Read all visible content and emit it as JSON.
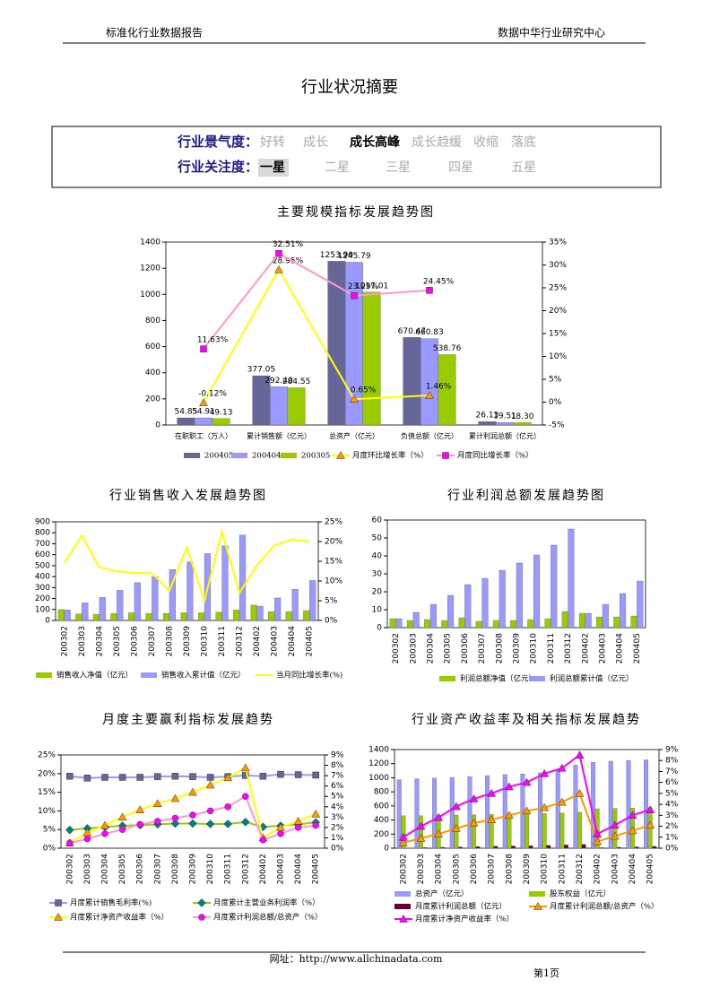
{
  "header": {
    "left": "标准化行业数据报告",
    "right": "数据中华行业研究中心"
  },
  "title": "行业状况摘要",
  "summary": {
    "rows": [
      {
        "label": "行业景气度：",
        "options": [
          "好转",
          "成长",
          "成长高峰",
          "成长趋缓",
          "收缩",
          "落底"
        ],
        "selected": 2
      },
      {
        "label": "行业关注度：",
        "options": [
          "一星",
          "二星",
          "三星",
          "四星",
          "五星"
        ],
        "selected": 0
      }
    ]
  },
  "charts": [
    {
      "type": "combo",
      "title": "主要规模指标发展趋势图",
      "categories": [
        "在职职工（万人）",
        "累计销售额（亿元）",
        "总资产（亿元）",
        "负债总额（亿元）",
        "累计利润总额（亿元）"
      ],
      "ylim": [
        0,
        1400
      ],
      "yticks": [
        0,
        200,
        400,
        600,
        800,
        1000,
        1200,
        1400
      ],
      "y2lim": [
        -5,
        35
      ],
      "y2ticks": [
        {
          "value": -5,
          "label": "-5%"
        },
        {
          "value": 0,
          "label": "0%"
        },
        {
          "value": 5,
          "label": "5%"
        },
        {
          "value": 10,
          "label": "10%"
        },
        {
          "value": 15,
          "label": "15%"
        },
        {
          "value": 20,
          "label": "20%"
        },
        {
          "value": 25,
          "label": "25%"
        },
        {
          "value": 30,
          "label": "30%"
        },
        {
          "value": 35,
          "label": "35%"
        }
      ],
      "series": [
        {
          "name": "200405",
          "kind": "bar",
          "color": "#666699",
          "values": [
            54.85,
            377.05,
            1253.9,
            670.47,
            26.13
          ],
          "value_labels": [
            "54.85",
            "377.05",
            "1253.90",
            "670.47",
            "26.13"
          ]
        },
        {
          "name": "200404",
          "kind": "bar",
          "color": "#9999ff",
          "values": [
            54.91,
            292.4,
            1245.79,
            660.83,
            19.51
          ],
          "value_labels": [
            "54.91",
            "292.40",
            "1245.79",
            "660.83",
            "19.51"
          ]
        },
        {
          "name": "200305",
          "kind": "bar",
          "color": "#99cc00",
          "values": [
            49.13,
            284.55,
            1017.01,
            538.76,
            18.3
          ],
          "value_labels": [
            "49.13",
            "284.55",
            "1017.01",
            "538.76",
            "18.30"
          ]
        },
        {
          "name": "月度环比增长率（%）",
          "kind": "line",
          "axis": "y2",
          "marker": "triangle",
          "color": "#ffff00",
          "marker_color": "#ff9900",
          "values": [
            -0.12,
            28.95,
            0.65,
            1.46,
            null
          ],
          "value_labels": [
            "-0.12%",
            "28.95%",
            "0.65%",
            "1.46%",
            null
          ]
        },
        {
          "name": "月度同比增长率（%）",
          "kind": "line",
          "axis": "y2",
          "marker": "square",
          "color": "#ff99cc",
          "marker_color": "#ff00ff",
          "values": [
            11.63,
            32.51,
            23.29,
            24.45,
            null
          ],
          "value_labels": [
            "11.63%",
            "32.51%",
            "23.29%",
            "24.45%",
            null
          ]
        }
      ]
    },
    {
      "type": "combo",
      "title": "行业销售收入发展趋势图",
      "categories": [
        "200302",
        "200303",
        "200304",
        "200305",
        "200306",
        "200307",
        "200308",
        "200309",
        "200310",
        "200311",
        "200312",
        "200402",
        "200403",
        "200404",
        "200405"
      ],
      "ylim": [
        0,
        900
      ],
      "yticks": [
        0,
        100,
        200,
        300,
        400,
        500,
        600,
        700,
        800,
        900
      ],
      "y2lim": [
        0,
        25
      ],
      "y2ticks": [
        {
          "value": 0,
          "label": "0%"
        },
        {
          "value": 5,
          "label": "5%"
        },
        {
          "value": 10,
          "label": "10%"
        },
        {
          "value": 15,
          "label": "15%"
        },
        {
          "value": 20,
          "label": "20%"
        },
        {
          "value": 25,
          "label": "25%"
        }
      ],
      "series": [
        {
          "name": "销售收入净值（亿元）",
          "kind": "bar",
          "color": "#99cc00",
          "values": [
            100,
            60,
            55,
            65,
            70,
            65,
            65,
            70,
            70,
            75,
            95,
            140,
            80,
            80,
            90
          ]
        },
        {
          "name": "销售收入累计值（亿元）",
          "kind": "bar",
          "color": "#9999ff",
          "values": [
            95,
            160,
            210,
            275,
            345,
            400,
            465,
            535,
            610,
            680,
            780,
            130,
            205,
            285,
            365
          ]
        },
        {
          "name": "当月同比增长率(%)",
          "kind": "line",
          "axis": "y2",
          "marker": "none",
          "color": "#ffff00",
          "values": [
            14.5,
            21.5,
            13.5,
            12.5,
            12,
            12,
            7.5,
            18.5,
            5,
            22.5,
            7,
            14,
            19,
            20.5,
            20
          ]
        }
      ]
    },
    {
      "type": "bar",
      "title": "行业利润总额发展趋势图",
      "categories": [
        "200302",
        "200303",
        "200304",
        "200305",
        "200306",
        "200307",
        "200308",
        "200309",
        "200310",
        "200311",
        "200312",
        "200402",
        "200403",
        "200404",
        "200405"
      ],
      "ylim": [
        0,
        60
      ],
      "yticks": [
        0,
        10,
        20,
        30,
        40,
        50,
        60
      ],
      "series": [
        {
          "name": "利润总额净值（亿元）",
          "kind": "bar",
          "color": "#99cc00",
          "values": [
            5,
            4,
            4.5,
            4,
            5.5,
            3.5,
            4,
            4,
            4.5,
            5,
            9,
            8,
            6,
            6,
            6.5
          ]
        },
        {
          "name": "利润总额累计值（亿元）",
          "kind": "bar",
          "color": "#9999ff",
          "values": [
            5,
            8.5,
            13,
            18,
            24,
            27.5,
            32,
            36,
            40.5,
            46,
            55,
            8,
            13,
            19,
            26
          ]
        }
      ]
    },
    {
      "type": "line",
      "title": "月度主要赢利指标发展趋势",
      "categories": [
        "200302",
        "200303",
        "200304",
        "200305",
        "200306",
        "200307",
        "200308",
        "200309",
        "200310",
        "200311",
        "200312",
        "200402",
        "200403",
        "200404",
        "200405"
      ],
      "ylim": [
        0,
        25
      ],
      "yticks": [
        {
          "value": 0,
          "label": "0%"
        },
        {
          "value": 5,
          "label": "5%"
        },
        {
          "value": 10,
          "label": "10%"
        },
        {
          "value": 15,
          "label": "15%"
        },
        {
          "value": 20,
          "label": "20%"
        },
        {
          "value": 25,
          "label": "25%"
        }
      ],
      "y2lim": [
        0,
        9
      ],
      "y2ticks": [
        {
          "value": 0,
          "label": "0%"
        },
        {
          "value": 1,
          "label": "1%"
        },
        {
          "value": 2,
          "label": "2%"
        },
        {
          "value": 3,
          "label": "3%"
        },
        {
          "value": 4,
          "label": "4%"
        },
        {
          "value": 5,
          "label": "5%"
        },
        {
          "value": 6,
          "label": "6%"
        },
        {
          "value": 7,
          "label": "7%"
        },
        {
          "value": 8,
          "label": "8%"
        },
        {
          "value": 9,
          "label": "9%"
        }
      ],
      "series": [
        {
          "name": "月度累计销售毛利率(%)",
          "kind": "line",
          "marker": "square",
          "color": "#9999ff",
          "marker_color": "#666699",
          "values": [
            19.3,
            18.8,
            19,
            19,
            19,
            19.2,
            19.3,
            19.2,
            19,
            19.2,
            19.5,
            19.3,
            19.8,
            19.7,
            19.6
          ]
        },
        {
          "name": "月度累计主营业务利润率（%）",
          "kind": "line",
          "marker": "diamond",
          "color": "#99cc00",
          "marker_color": "#008080",
          "values": [
            4.9,
            5.3,
            5.7,
            6,
            6.2,
            6.4,
            6.6,
            6.6,
            6.5,
            6.5,
            7,
            5.7,
            6,
            6.4,
            6.9
          ]
        },
        {
          "name": "月度累计净资产收益率（%）",
          "kind": "line",
          "axis": "y2",
          "marker": "triangle",
          "color": "#ffff00",
          "marker_color": "#ff9900",
          "values": [
            0.5,
            1.5,
            2.2,
            3,
            3.7,
            4.3,
            4.8,
            5.4,
            6.1,
            6.8,
            7.75,
            1,
            2,
            2.6,
            3.3
          ]
        },
        {
          "name": "月度累计利润总额/总资产（%）",
          "kind": "line",
          "axis": "y2",
          "marker": "circle",
          "color": "#ff99cc",
          "marker_color": "#ff00ff",
          "values": [
            0.5,
            0.9,
            1.4,
            1.8,
            2.3,
            2.6,
            2.9,
            3.2,
            3.6,
            4,
            5,
            0.8,
            1.4,
            2,
            2.2
          ]
        }
      ]
    },
    {
      "type": "combo",
      "title": "行业资产收益率及相关指标发展趋势",
      "categories": [
        "200302",
        "200303",
        "200304",
        "200305",
        "200306",
        "200307",
        "200308",
        "200309",
        "200310",
        "200311",
        "200312",
        "200402",
        "200403",
        "200404",
        "200405"
      ],
      "ylim": [
        0,
        1400
      ],
      "yticks": [
        0,
        200,
        400,
        600,
        800,
        1000,
        1200,
        1400
      ],
      "y2lim": [
        0,
        9
      ],
      "y2ticks": [
        {
          "value": 0,
          "label": "0%"
        },
        {
          "value": 1,
          "label": "1%"
        },
        {
          "value": 2,
          "label": "2%"
        },
        {
          "value": 3,
          "label": "3%"
        },
        {
          "value": 4,
          "label": "4%"
        },
        {
          "value": 5,
          "label": "5%"
        },
        {
          "value": 6,
          "label": "6%"
        },
        {
          "value": 7,
          "label": "7%"
        },
        {
          "value": 8,
          "label": "8%"
        },
        {
          "value": 9,
          "label": "9%"
        }
      ],
      "series": [
        {
          "name": "总资产（亿元）",
          "kind": "bar",
          "color": "#9999ff",
          "values": [
            970,
            985,
            995,
            1005,
            1015,
            1030,
            1045,
            1055,
            1070,
            1095,
            1180,
            1220,
            1235,
            1245,
            1254
          ]
        },
        {
          "name": "股东权益（亿元）",
          "kind": "bar",
          "color": "#99cc00",
          "values": [
            460,
            460,
            465,
            470,
            475,
            480,
            485,
            490,
            495,
            500,
            510,
            560,
            565,
            570,
            575
          ]
        },
        {
          "name": "月度累计利润总额（亿元）",
          "kind": "bar",
          "color": "#660033",
          "values": [
            5,
            9,
            13,
            18,
            24,
            27.5,
            32,
            36,
            40.5,
            46,
            55,
            8,
            13,
            19,
            26
          ]
        },
        {
          "name": "月度累计利润总额/总资产（%）",
          "kind": "line",
          "axis": "y2",
          "marker": "triangle",
          "color": "#ff9900",
          "marker_color": "#ff9900",
          "values": [
            0.5,
            0.9,
            1.3,
            1.8,
            2.3,
            2.6,
            3,
            3.4,
            3.7,
            4.2,
            5,
            0.6,
            1.1,
            1.6,
            2.1
          ]
        },
        {
          "name": "月度累计净资产收益率（%）",
          "kind": "line",
          "axis": "y2",
          "marker": "triangle",
          "color": "#ff00ff",
          "marker_color": "#ff00ff",
          "values": [
            1,
            2,
            2.8,
            3.8,
            4.5,
            5,
            5.6,
            6,
            6.8,
            7.3,
            8.5,
            1.3,
            2.1,
            3,
            3.5
          ]
        }
      ]
    }
  ],
  "footer": {
    "url": "网址：http://www.allchinadata.com",
    "page": "第1页"
  }
}
